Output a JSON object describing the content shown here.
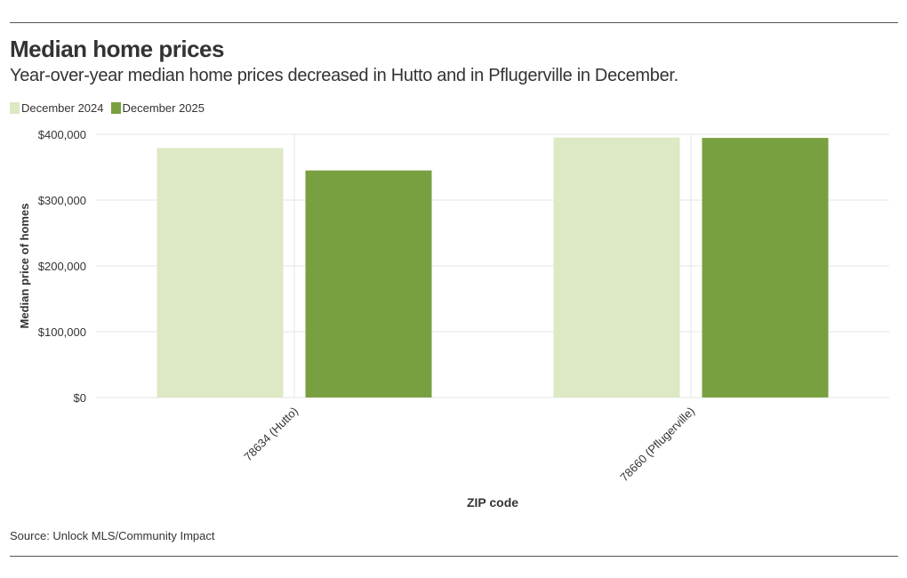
{
  "header": {
    "title": "Median home prices",
    "subtitle": "Year-over-year median home prices decreased in Hutto and in Pflugerville in December."
  },
  "footer": {
    "source": "Source: Unlock MLS/Community Impact"
  },
  "colors": {
    "december_2024": "#dde8c4",
    "december_2025": "#79a040",
    "grid": "#e6e6e6",
    "text": "#333333"
  },
  "chart_data": {
    "type": "bar",
    "title": "Median home prices",
    "subtitle": "Year-over-year median home prices decreased in Hutto and in Pflugerville in December.",
    "xlabel": "ZIP code",
    "ylabel": "Median price of homes",
    "categories": [
      "78634 (Hutto)",
      "78660 (Pflugerville)"
    ],
    "series": [
      {
        "name": "December 2024",
        "values": [
          379000,
          395000
        ]
      },
      {
        "name": "December 2025",
        "values": [
          345000,
          394500
        ]
      }
    ],
    "ylim": [
      0,
      400000
    ],
    "yticks": [
      0,
      100000,
      200000,
      300000,
      400000
    ],
    "ytick_labels": [
      "$0",
      "$100,000",
      "$200,000",
      "$300,000",
      "$400,000"
    ],
    "legend_position": "top-left",
    "grid": true
  }
}
